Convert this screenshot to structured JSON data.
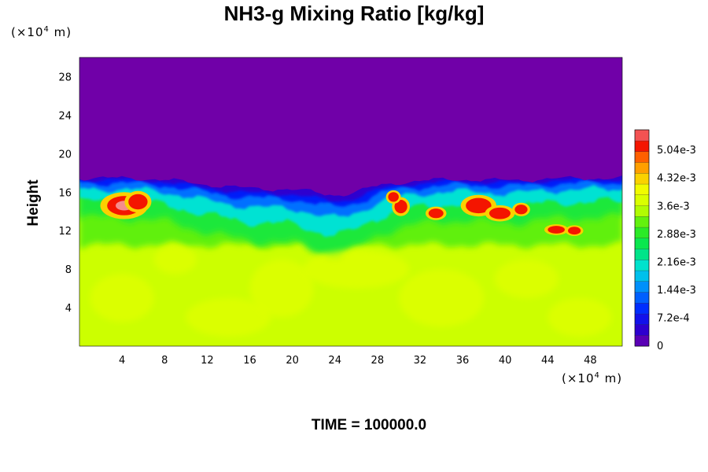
{
  "chart_data": {
    "type": "heatmap",
    "title": "NH3-g Mixing Ratio [kg/kg]",
    "ylabel": "Height",
    "x_unit": {
      "prefix": "(×10",
      "exp": "4",
      "suffix": " m)"
    },
    "y_unit": {
      "prefix": "(×10",
      "exp": "4",
      "suffix": " m)"
    },
    "x_ticks": [
      "4",
      "8",
      "12",
      "16",
      "20",
      "24",
      "28",
      "32",
      "36",
      "40",
      "44",
      "48"
    ],
    "y_ticks": [
      "4",
      "8",
      "12",
      "16",
      "20",
      "24",
      "28"
    ],
    "xlim": [
      0,
      51
    ],
    "ylim": [
      0,
      30
    ],
    "colorbar": {
      "labels": [
        "0",
        "7.2e-4",
        "1.44e-3",
        "2.16e-3",
        "2.88e-3",
        "3.6e-3",
        "4.32e-3",
        "5.04e-3"
      ],
      "range": [
        0,
        0.0054
      ],
      "levels": 20
    },
    "field_summary": {
      "background_value": 0.0035,
      "stratosphere_value": 0,
      "interface_height": 17.3
    },
    "time_label": "TIME = 100000.0"
  }
}
